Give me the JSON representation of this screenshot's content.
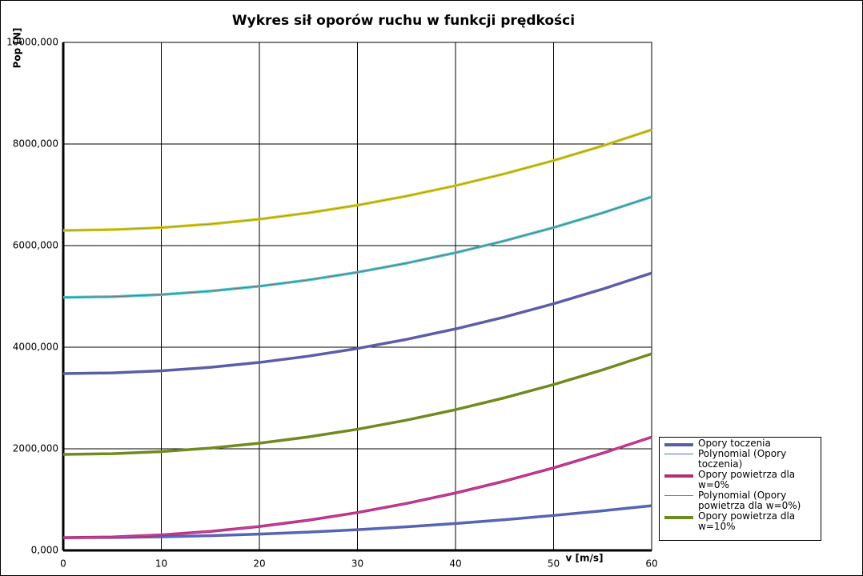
{
  "chart_data": {
    "type": "line",
    "title": "Wykres sił oporów ruchu w funkcji prędkości",
    "x_label": "v [m/s]",
    "y_label": "Pop [N]",
    "x": [
      0,
      5,
      10,
      15,
      20,
      25,
      30,
      35,
      40,
      45,
      50,
      55,
      60
    ],
    "xlim": [
      0,
      60
    ],
    "xticks": [
      0,
      10,
      20,
      30,
      40,
      50,
      60
    ],
    "ylim": [
      0,
      10000
    ],
    "yticks": [
      {
        "value": 0,
        "label": "0,000"
      },
      {
        "value": 2000,
        "label": "2000,000"
      },
      {
        "value": 4000,
        "label": "4000,000"
      },
      {
        "value": 6000,
        "label": "6000,000"
      },
      {
        "value": 8000,
        "label": "8000,000"
      },
      {
        "value": 10000,
        "label": "10000,000"
      }
    ],
    "grid": true,
    "series": [
      {
        "name": "Opory toczenia",
        "color": "#5b5ea6",
        "width": 3.5,
        "values": [
          250,
          254,
          268,
          290,
          320,
          360,
          408,
          464,
          530,
          604,
          688,
          780,
          880
        ]
      },
      {
        "name": "Polynomial (Opory toczenia)",
        "color": "#4a6fd0",
        "width": 1,
        "values": [
          250,
          254,
          268,
          290,
          320,
          360,
          408,
          464,
          530,
          604,
          688,
          780,
          880
        ]
      },
      {
        "name": "Opory powietrza dla w=0%",
        "color": "#b03070",
        "width": 3.5,
        "values": [
          250,
          264,
          305,
          374,
          470,
          594,
          745,
          924,
          1130,
          1364,
          1625,
          1914,
          2230
        ]
      },
      {
        "name": "Polynomial (Opory powietrza dla w=0%)",
        "color": "#d040c0",
        "width": 1,
        "values": [
          250,
          264,
          305,
          374,
          470,
          594,
          745,
          924,
          1130,
          1364,
          1625,
          1914,
          2230
        ]
      },
      {
        "name": "Opory powietrza dla w=10%",
        "color": "#6f8a1e",
        "width": 3.5,
        "values": [
          1890,
          1904,
          1945,
          2014,
          2110,
          2234,
          2385,
          2564,
          2770,
          3004,
          3265,
          3554,
          3870
        ]
      },
      {
        "color": "#5b5ea6",
        "width": 3.5,
        "values": [
          3480,
          3494,
          3535,
          3604,
          3700,
          3824,
          3975,
          4154,
          4360,
          4594,
          4855,
          5144,
          5460
        ]
      },
      {
        "color": "#40c8d0",
        "width": 3.5,
        "values": [
          4980,
          4994,
          5035,
          5104,
          5200,
          5324,
          5475,
          5654,
          5860,
          6094,
          6355,
          6644,
          6960
        ]
      },
      {
        "color": "#806868",
        "width": 1,
        "values": [
          4980,
          4994,
          5035,
          5104,
          5200,
          5324,
          5475,
          5654,
          5860,
          6094,
          6355,
          6644,
          6960
        ]
      },
      {
        "color": "#d8c820",
        "width": 3.5,
        "values": [
          6300,
          6314,
          6355,
          6424,
          6520,
          6644,
          6795,
          6974,
          7180,
          7414,
          7675,
          7964,
          8280
        ]
      },
      {
        "color": "#90a020",
        "width": 1,
        "values": [
          6300,
          6314,
          6355,
          6424,
          6520,
          6644,
          6795,
          6974,
          7180,
          7414,
          7675,
          7964,
          8280
        ]
      }
    ]
  }
}
